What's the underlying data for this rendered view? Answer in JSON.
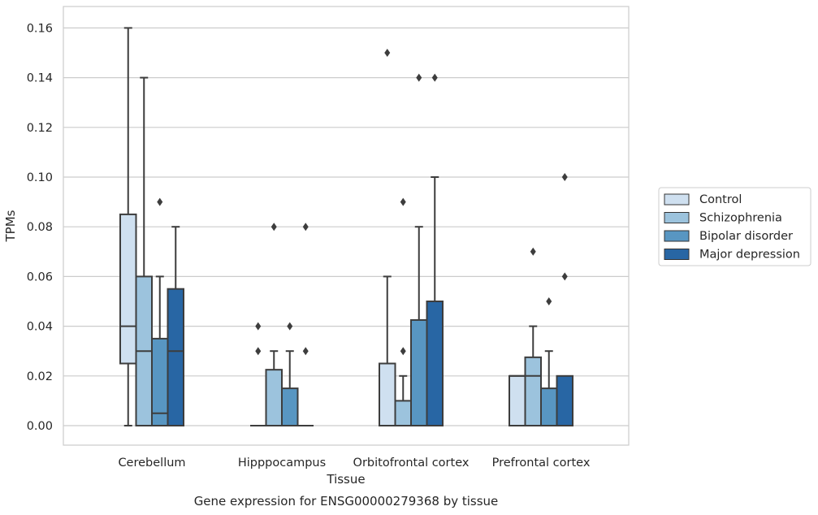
{
  "chart_data": {
    "type": "boxplot",
    "title": "",
    "caption": "Gene expression for ENSG00000279368 by tissue",
    "xlabel": "Tissue",
    "ylabel": "TPMs",
    "ylim": [
      -0.008,
      0.168
    ],
    "yticks": [
      "0.00",
      "0.02",
      "0.04",
      "0.06",
      "0.08",
      "0.10",
      "0.12",
      "0.14",
      "0.16"
    ],
    "grid": "horizontal",
    "legend_position": "right",
    "categories": [
      "Cerebellum",
      "Hipppocampus",
      "Orbitofrontal cortex",
      "Prefrontal cortex"
    ],
    "series": [
      {
        "name": "Control",
        "color": "#cfe0f0",
        "boxes": [
          {
            "whisker_low": 0.0,
            "q1": 0.025,
            "median": 0.04,
            "q3": 0.085,
            "whisker_high": 0.16,
            "outliers": []
          },
          {
            "whisker_low": 0.0,
            "q1": 0.0,
            "median": 0.0,
            "q3": 0.0,
            "whisker_high": 0.0,
            "outliers": [
              0.03,
              0.04
            ]
          },
          {
            "whisker_low": 0.0,
            "q1": 0.0,
            "median": 0.0,
            "q3": 0.025,
            "whisker_high": 0.06,
            "outliers": [
              0.15
            ]
          },
          {
            "whisker_low": 0.0,
            "q1": 0.0,
            "median": 0.02,
            "q3": 0.02,
            "whisker_high": 0.02,
            "outliers": []
          }
        ]
      },
      {
        "name": "Schizophrenia",
        "color": "#9cc3dd",
        "boxes": [
          {
            "whisker_low": 0.0,
            "q1": 0.0,
            "median": 0.03,
            "q3": 0.06,
            "whisker_high": 0.14,
            "outliers": []
          },
          {
            "whisker_low": 0.0,
            "q1": 0.0,
            "median": 0.0,
            "q3": 0.0225,
            "whisker_high": 0.03,
            "outliers": [
              0.08
            ]
          },
          {
            "whisker_low": 0.0,
            "q1": 0.0,
            "median": 0.0,
            "q3": 0.01,
            "whisker_high": 0.02,
            "outliers": [
              0.03,
              0.09
            ]
          },
          {
            "whisker_low": 0.0,
            "q1": 0.0,
            "median": 0.02,
            "q3": 0.0275,
            "whisker_high": 0.04,
            "outliers": [
              0.07
            ]
          }
        ]
      },
      {
        "name": "Bipolar disorder",
        "color": "#5896c2",
        "boxes": [
          {
            "whisker_low": 0.0,
            "q1": 0.0,
            "median": 0.005,
            "q3": 0.035,
            "whisker_high": 0.06,
            "outliers": [
              0.09
            ]
          },
          {
            "whisker_low": 0.0,
            "q1": 0.0,
            "median": 0.0,
            "q3": 0.015,
            "whisker_high": 0.03,
            "outliers": [
              0.04
            ]
          },
          {
            "whisker_low": 0.0,
            "q1": 0.0,
            "median": 0.0,
            "q3": 0.0425,
            "whisker_high": 0.08,
            "outliers": [
              0.14
            ]
          },
          {
            "whisker_low": 0.0,
            "q1": 0.0,
            "median": 0.0,
            "q3": 0.015,
            "whisker_high": 0.03,
            "outliers": [
              0.05
            ]
          }
        ]
      },
      {
        "name": "Major depression",
        "color": "#2866a4",
        "boxes": [
          {
            "whisker_low": 0.0,
            "q1": 0.0,
            "median": 0.03,
            "q3": 0.055,
            "whisker_high": 0.08,
            "outliers": []
          },
          {
            "whisker_low": 0.0,
            "q1": 0.0,
            "median": 0.0,
            "q3": 0.0,
            "whisker_high": 0.0,
            "outliers": [
              0.03,
              0.08
            ]
          },
          {
            "whisker_low": 0.0,
            "q1": 0.0,
            "median": 0.0,
            "q3": 0.05,
            "whisker_high": 0.1,
            "outliers": [
              0.14
            ]
          },
          {
            "whisker_low": 0.0,
            "q1": 0.0,
            "median": 0.0,
            "q3": 0.02,
            "whisker_high": 0.02,
            "outliers": [
              0.06,
              0.1
            ]
          }
        ]
      }
    ]
  }
}
